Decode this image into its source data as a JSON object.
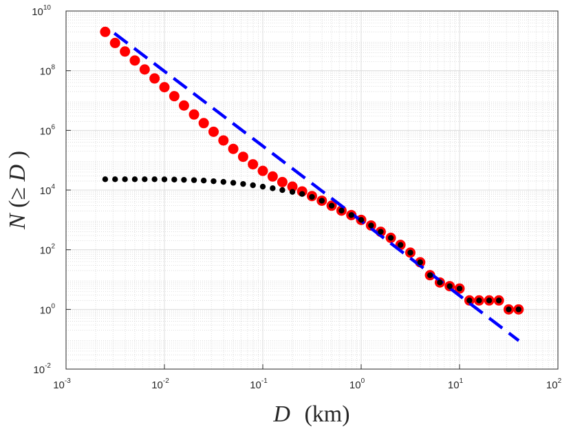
{
  "chart_data": {
    "type": "scatter",
    "title": "",
    "xlabel_var": "D",
    "xlabel_unit": "(km)",
    "ylabel_var": "N",
    "ylabel_open": "(≥ ",
    "ylabel_close": ")",
    "xscale": "log",
    "yscale": "log",
    "xlim": [
      0.001,
      100
    ],
    "ylim": [
      0.01,
      10000000000
    ],
    "grid": "major and minor (dotted)",
    "x_ticks": [
      {
        "base": "10",
        "exp": "-3"
      },
      {
        "base": "10",
        "exp": "-2"
      },
      {
        "base": "10",
        "exp": "-1"
      },
      {
        "base": "10",
        "exp": "0"
      },
      {
        "base": "10",
        "exp": "1"
      },
      {
        "base": "10",
        "exp": "2"
      }
    ],
    "y_ticks": [
      {
        "base": "10",
        "exp": "-2"
      },
      {
        "base": "10",
        "exp": "0"
      },
      {
        "base": "10",
        "exp": "2"
      },
      {
        "base": "10",
        "exp": "4"
      },
      {
        "base": "10",
        "exp": "6"
      },
      {
        "base": "10",
        "exp": "8"
      },
      {
        "base": "10",
        "exp": "10"
      }
    ],
    "series": [
      {
        "name": "red markers",
        "style": "marker",
        "color": "#ff0000",
        "points": [
          [
            0.0025,
            2000000000.0
          ],
          [
            0.00315,
            850000000.0
          ],
          [
            0.00397,
            440000000.0
          ],
          [
            0.005,
            220000000.0
          ],
          [
            0.0063,
            110000000.0
          ],
          [
            0.00794,
            55000000.0
          ],
          [
            0.01,
            28000000.0
          ],
          [
            0.0126,
            14000000.0
          ],
          [
            0.0158,
            6800000.0
          ],
          [
            0.02,
            3400000.0
          ],
          [
            0.0251,
            1750000.0
          ],
          [
            0.0316,
            900000.0
          ],
          [
            0.0398,
            460000.0
          ],
          [
            0.0501,
            240000.0
          ],
          [
            0.0631,
            130000.0
          ],
          [
            0.0794,
            73000.0
          ],
          [
            0.1,
            44000.0
          ],
          [
            0.126,
            28500.0
          ],
          [
            0.158,
            18500.0
          ],
          [
            0.2,
            13000.0
          ],
          [
            0.251,
            9000.0
          ],
          [
            0.316,
            6300.0
          ],
          [
            0.398,
            4400.0
          ],
          [
            0.501,
            3000.0
          ],
          [
            0.631,
            2050.0
          ],
          [
            0.794,
            1450.0
          ],
          [
            1.0,
            1000.0
          ],
          [
            1.26,
            650.0
          ],
          [
            1.58,
            400.0
          ],
          [
            2.0,
            250.0
          ],
          [
            2.51,
            145.0
          ],
          [
            3.16,
            80
          ],
          [
            3.98,
            38
          ],
          [
            5.01,
            14
          ],
          [
            6.31,
            8
          ],
          [
            7.94,
            6
          ],
          [
            10.0,
            5
          ],
          [
            12.6,
            2
          ],
          [
            15.8,
            2
          ],
          [
            20.0,
            2
          ],
          [
            25.1,
            2
          ],
          [
            31.6,
            1
          ],
          [
            39.8,
            1
          ]
        ]
      },
      {
        "name": "black dots",
        "style": "marker",
        "color": "#000000",
        "points": [
          [
            0.0025,
            23000.0
          ],
          [
            0.00315,
            23000.0
          ],
          [
            0.00397,
            23000.0
          ],
          [
            0.005,
            23000.0
          ],
          [
            0.0063,
            23000.0
          ],
          [
            0.00794,
            23000.0
          ],
          [
            0.01,
            22800.0
          ],
          [
            0.0126,
            22500.0
          ],
          [
            0.0158,
            22000.0
          ],
          [
            0.02,
            21500.0
          ],
          [
            0.0251,
            20800.0
          ],
          [
            0.0316,
            19800.0
          ],
          [
            0.0398,
            18800.0
          ],
          [
            0.0501,
            17500.0
          ],
          [
            0.0631,
            16000.0
          ],
          [
            0.0794,
            14500.0
          ],
          [
            0.1,
            13000.0
          ],
          [
            0.126,
            11500.0
          ],
          [
            0.158,
            10000.0
          ],
          [
            0.2,
            8700.0
          ],
          [
            0.251,
            7400.0
          ],
          [
            0.316,
            5900.0
          ],
          [
            0.398,
            4400.0
          ],
          [
            0.501,
            3000.0
          ],
          [
            0.631,
            2050.0
          ],
          [
            0.794,
            1450.0
          ],
          [
            1.0,
            1000.0
          ],
          [
            1.26,
            650.0
          ],
          [
            1.58,
            400.0
          ],
          [
            2.0,
            250.0
          ],
          [
            2.51,
            145.0
          ],
          [
            3.16,
            80
          ],
          [
            3.98,
            38
          ],
          [
            5.01,
            14
          ],
          [
            6.31,
            8
          ],
          [
            7.94,
            6
          ],
          [
            10.0,
            5
          ],
          [
            12.6,
            2
          ],
          [
            15.8,
            2
          ],
          [
            20.0,
            2
          ],
          [
            25.1,
            2
          ],
          [
            31.6,
            1
          ],
          [
            39.8,
            1
          ]
        ]
      },
      {
        "name": "power-law fit",
        "style": "dashed-line",
        "color": "#0000ff",
        "points": [
          [
            0.0031,
            1800000000.0
          ],
          [
            40,
            0.09
          ]
        ]
      }
    ]
  }
}
